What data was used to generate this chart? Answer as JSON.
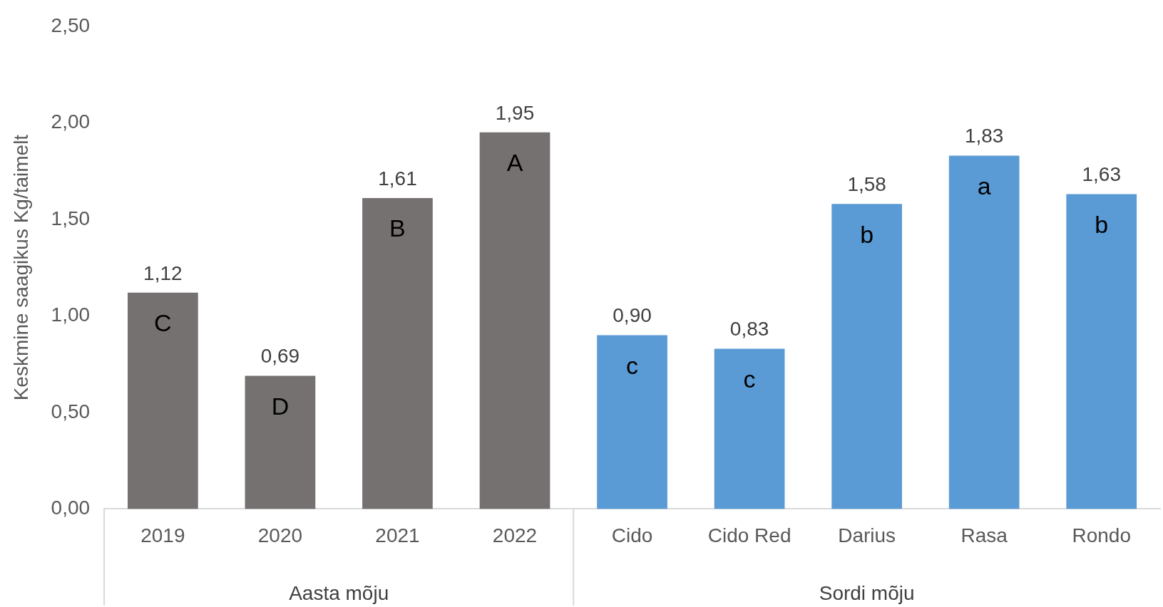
{
  "chart_data": {
    "type": "bar",
    "ylabel": "Keskmine saagikus Kg/taimelt",
    "categories": [
      "2019",
      "2020",
      "2021",
      "2022",
      "Cido",
      "Cido Red",
      "Darius",
      "Rasa",
      "Rondo"
    ],
    "series": [
      {
        "color": "#767171",
        "values": [
          1.12,
          0.69,
          1.61,
          1.95,
          null,
          null,
          null,
          null,
          null
        ],
        "value_labels": [
          "1,12",
          "0,69",
          "1,61",
          "1,95",
          null,
          null,
          null,
          null,
          null
        ]
      },
      {
        "color": "#5b9bd5",
        "values": [
          null,
          null,
          null,
          null,
          0.9,
          0.83,
          1.58,
          1.83,
          1.63
        ],
        "value_labels": [
          null,
          null,
          null,
          null,
          "0,90",
          "0,83",
          "1,58",
          "1,83",
          "1,63"
        ]
      }
    ],
    "ylim": [
      0,
      2.5
    ],
    "yticks": [
      {
        "value": 0,
        "label": "0,00"
      },
      {
        "value": 0.5,
        "label": "0,50"
      },
      {
        "value": 1,
        "label": "1,00"
      },
      {
        "value": 1.5,
        "label": "1,50"
      },
      {
        "value": 2,
        "label": "2,00"
      },
      {
        "value": 2.5,
        "label": "2,50"
      }
    ],
    "grid": false,
    "legend": false,
    "annotations": [
      {
        "text": "C",
        "x": "2019",
        "y": 1.12
      },
      {
        "text": "D",
        "x": "2020",
        "y": 0.69
      },
      {
        "text": "B",
        "x": "2021",
        "y": 1.61
      },
      {
        "text": "A",
        "x": "2022",
        "y": 1.95
      },
      {
        "text": "c",
        "x": "Cido",
        "y": 0.9
      },
      {
        "text": "c",
        "x": "Cido Red",
        "y": 0.83
      },
      {
        "text": "b",
        "x": "Darius",
        "y": 1.58
      },
      {
        "text": "a",
        "x": "Rasa",
        "y": 1.83
      },
      {
        "text": "b",
        "x": "Rondo",
        "y": 1.63
      },
      "Aasta mõju",
      "Sordi mõju"
    ]
  }
}
